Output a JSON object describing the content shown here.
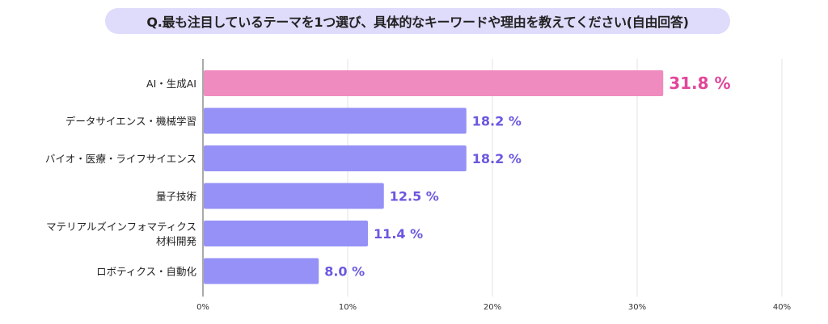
{
  "title": "Q.最も注目しているテーマを1つ選び、具体的なキーワードや理由を教えてください(自由回答)",
  "colors": {
    "highlight_bar": "#ef8bbe",
    "bar": "#9691f6",
    "highlight_label": "#e0479a",
    "label": "#6a58e0",
    "title_bg": "#dedbfb",
    "grid": "#e3e3e3"
  },
  "chart_data": {
    "type": "bar",
    "orientation": "horizontal",
    "title": "Q.最も注目しているテーマを1つ選び、具体的なキーワードや理由を教えてください(自由回答)",
    "categories": [
      [
        "AI・生成AI"
      ],
      [
        "データサイエンス・機械学習"
      ],
      [
        "バイオ・医療・ライフサイエンス"
      ],
      [
        "量子技術"
      ],
      [
        "マテリアルズインフォマティクス",
        "材料開発"
      ],
      [
        "ロボティクス・自動化"
      ]
    ],
    "values": [
      31.8,
      18.2,
      18.2,
      12.5,
      11.4,
      8.0
    ],
    "data_labels": [
      "31.8 %",
      "18.2 %",
      "18.2 %",
      "12.5 %",
      "11.4 %",
      "8.0 %"
    ],
    "highlight_index": 0,
    "xlim": [
      0,
      40
    ],
    "xticks": [
      0,
      10,
      20,
      30,
      40
    ],
    "xtick_labels": [
      "0%",
      "10%",
      "20%",
      "30%",
      "40%"
    ],
    "grid": true
  }
}
